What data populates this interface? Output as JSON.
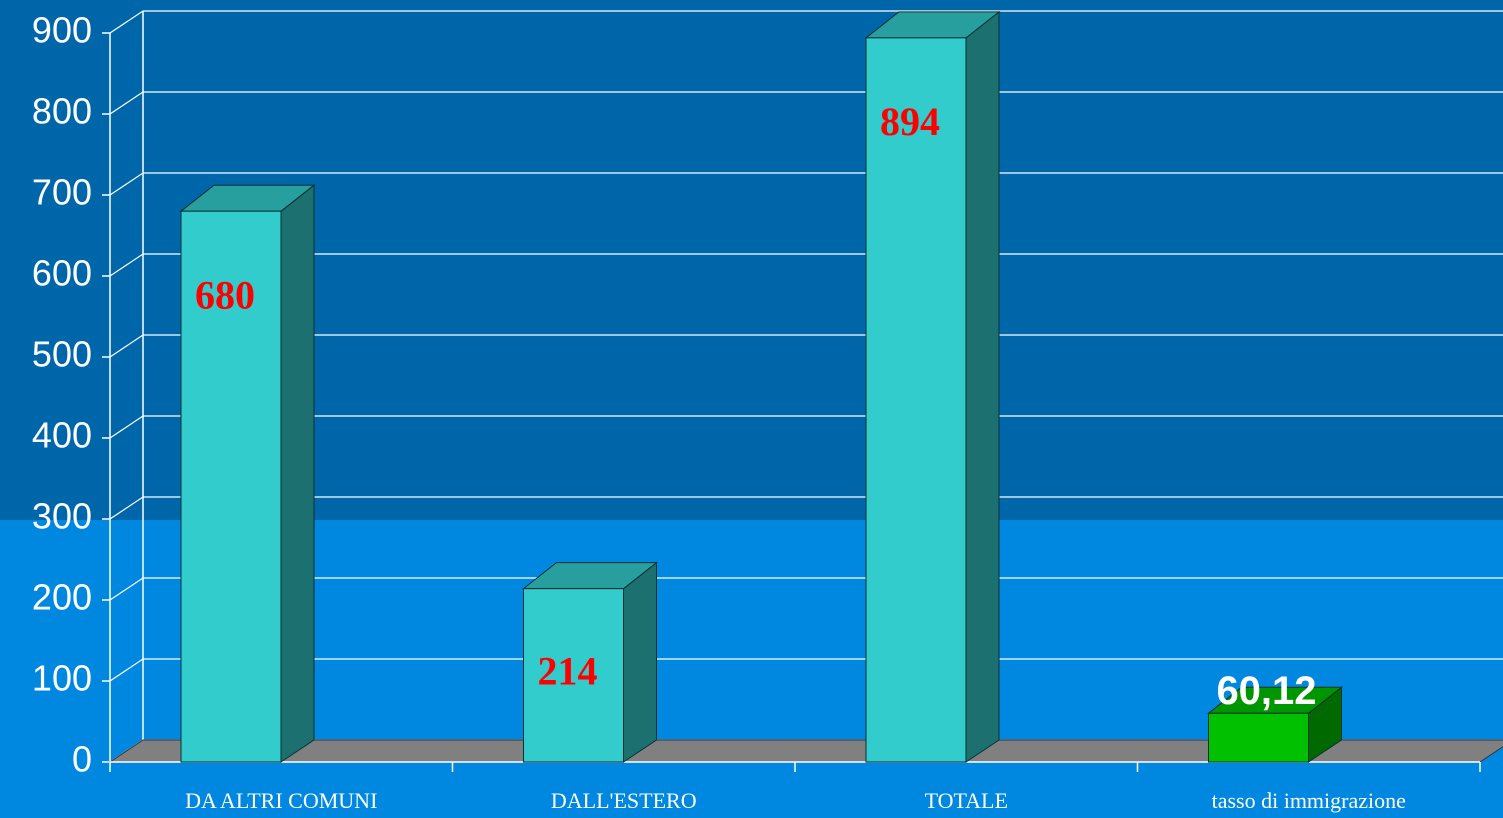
{
  "chart_data": {
    "type": "bar3d",
    "categories": [
      "DA ALTRI COMUNI",
      "DALL'ESTERO",
      "TOTALE",
      "tasso di immigrazione"
    ],
    "values": [
      680,
      214,
      894,
      60.12
    ],
    "value_labels": [
      "680",
      "214",
      "894",
      "60,12"
    ],
    "colors": [
      "#33cccc",
      "#33cccc",
      "#33cccc",
      "#00c000"
    ],
    "value_label_colors": [
      "#ff0000",
      "#ff0000",
      "#ff0000",
      "#ffffff"
    ],
    "ylim": [
      0,
      900
    ],
    "yticks": [
      0,
      100,
      200,
      300,
      400,
      500,
      600,
      700,
      800,
      900
    ],
    "grid": true
  }
}
